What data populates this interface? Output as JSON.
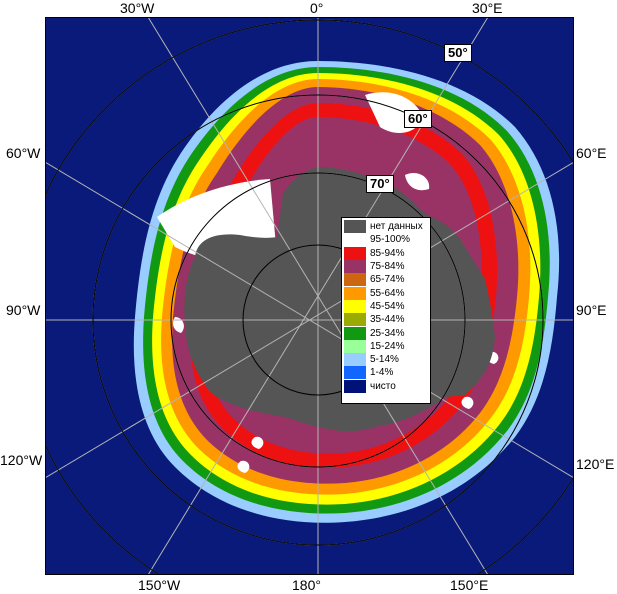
{
  "map": {
    "colors": {
      "ocean": "#0a1a7a",
      "land": "#555555",
      "no_data": "#555555",
      "grid": "#b4b4b4"
    },
    "longitude_labels": {
      "lon_30w_top": "30°W",
      "lon_0": "0°",
      "lon_30e_top": "30°E",
      "lon_60w": "60°W",
      "lon_60e": "60°E",
      "lon_90w": "90°W",
      "lon_90e": "90°E",
      "lon_120w": "120°W",
      "lon_120e": "120°E",
      "lon_150w": "150°W",
      "lon_180": "180°",
      "lon_150e": "150°E"
    },
    "latitude_labels": {
      "lat_50": "50°",
      "lat_60": "60°",
      "lat_70": "70°"
    }
  },
  "legend": {
    "items": [
      {
        "label": "нет данных",
        "color": "#555555"
      },
      {
        "label": "95-100%",
        "color": "#ffffff"
      },
      {
        "label": "85-94%",
        "color": "#ee1111"
      },
      {
        "label": "75-84%",
        "color": "#993366"
      },
      {
        "label": "65-74%",
        "color": "#cc6611"
      },
      {
        "label": "55-64%",
        "color": "#ff9900"
      },
      {
        "label": "45-54%",
        "color": "#ffff00"
      },
      {
        "label": "35-44%",
        "color": "#99aa00"
      },
      {
        "label": "25-34%",
        "color": "#119911"
      },
      {
        "label": "15-24%",
        "color": "#99ff99"
      },
      {
        "label": "5-14%",
        "color": "#99ccff"
      },
      {
        "label": "1-4%",
        "color": "#1166ff"
      },
      {
        "label": "чисто",
        "color": "#001177"
      }
    ]
  }
}
